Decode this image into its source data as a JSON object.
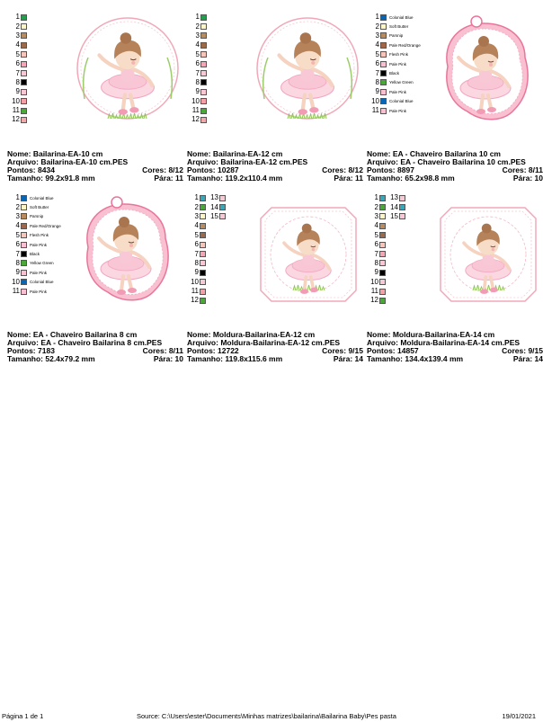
{
  "labels": {
    "name": "Nome:",
    "file": "Arquivo:",
    "stitches": "Pontos:",
    "size": "Tamanho:",
    "colors": "Cores:",
    "stops": "Pára:"
  },
  "footer": {
    "page": "Página 1 de 1",
    "source": "Source: C:\\Users\\ester\\Documents\\Minhas matrizes\\bailarina\\Bailarina Baby\\Pes pasta",
    "date": "19/01/2021"
  },
  "designs": [
    {
      "name": "Bailarina-EA-10 cm",
      "file": "Bailarina-EA-10 cm.PES",
      "stitches": "8434",
      "colors": "8/12",
      "size": "99.2x91.8 mm",
      "stops": "11",
      "shape": "circle",
      "swatches": [
        {
          "n": "1",
          "c": "#1fa04a"
        },
        {
          "n": "2",
          "c": "#fff6c8"
        },
        {
          "n": "3",
          "c": "#b88c5e"
        },
        {
          "n": "4",
          "c": "#9a6a4a"
        },
        {
          "n": "5",
          "c": "#f6c6bc"
        },
        {
          "n": "6",
          "c": "#f4a6b6"
        },
        {
          "n": "7",
          "c": "#f8c8d4"
        },
        {
          "n": "8",
          "c": "#000000"
        },
        {
          "n": "9",
          "c": "#f8c8d4"
        },
        {
          "n": "10",
          "c": "#f4a0a8"
        },
        {
          "n": "11",
          "c": "#4aa838"
        },
        {
          "n": "12",
          "c": "#f0a8a8"
        }
      ]
    },
    {
      "name": "Bailarina-EA-12 cm",
      "file": "Bailarina-EA-12 cm.PES",
      "stitches": "10287",
      "colors": "8/12",
      "size": "119.2x110.4 mm",
      "stops": "11",
      "shape": "circle",
      "swatches": [
        {
          "n": "1",
          "c": "#1fa04a"
        },
        {
          "n": "2",
          "c": "#fff6c8"
        },
        {
          "n": "3",
          "c": "#b88c5e"
        },
        {
          "n": "4",
          "c": "#9a6a4a"
        },
        {
          "n": "5",
          "c": "#f6c6bc"
        },
        {
          "n": "6",
          "c": "#f4a6b6"
        },
        {
          "n": "7",
          "c": "#f8c8d4"
        },
        {
          "n": "8",
          "c": "#000000"
        },
        {
          "n": "9",
          "c": "#f8c8d4"
        },
        {
          "n": "10",
          "c": "#f4a0a8"
        },
        {
          "n": "11",
          "c": "#4aa838"
        },
        {
          "n": "12",
          "c": "#f0a8a8"
        }
      ]
    },
    {
      "name": "EA - Chaveiro Bailarina 10 cm",
      "file": "EA - Chaveiro Bailarina 10 cm.PES",
      "stitches": "8897",
      "colors": "8/11",
      "size": "65.2x98.8 mm",
      "stops": "10",
      "shape": "keychain",
      "swatches": [
        {
          "n": "1",
          "c": "#0a66b2",
          "name": "Colonial Blue"
        },
        {
          "n": "2",
          "c": "#fff6c8",
          "name": "Soft Butter"
        },
        {
          "n": "3",
          "c": "#b88c5e",
          "name": "Parsnip"
        },
        {
          "n": "4",
          "c": "#a06848",
          "name": "Pale Red/Orange"
        },
        {
          "n": "5",
          "c": "#f6c6bc",
          "name": "Flesh Pink"
        },
        {
          "n": "6",
          "c": "#f8c0d0",
          "name": "Pale Pink"
        },
        {
          "n": "7",
          "c": "#000000",
          "name": "Black"
        },
        {
          "n": "8",
          "c": "#4aa838",
          "name": "Yellow Green"
        },
        {
          "n": "9",
          "c": "#f8c0d0",
          "name": "Pale Pink"
        },
        {
          "n": "10",
          "c": "#0a66b2",
          "name": "Colonial Blue"
        },
        {
          "n": "11",
          "c": "#f8c0d0",
          "name": "Pale Pink"
        }
      ]
    },
    {
      "name": "EA - Chaveiro Bailarina 8 cm",
      "file": "EA - Chaveiro Bailarina 8 cm.PES",
      "stitches": "7183",
      "colors": "8/11",
      "size": "52.4x79.2 mm",
      "stops": "10",
      "shape": "keychain",
      "swatches": [
        {
          "n": "1",
          "c": "#0a66b2",
          "name": "Colonial Blue"
        },
        {
          "n": "2",
          "c": "#fff6c8",
          "name": "Soft Butter"
        },
        {
          "n": "3",
          "c": "#b88c5e",
          "name": "Parsnip"
        },
        {
          "n": "4",
          "c": "#a06848",
          "name": "Pale Red/Orange"
        },
        {
          "n": "5",
          "c": "#f6c6bc",
          "name": "Flesh Pink"
        },
        {
          "n": "6",
          "c": "#f8c0d0",
          "name": "Pale Pink"
        },
        {
          "n": "7",
          "c": "#000000",
          "name": "Black"
        },
        {
          "n": "8",
          "c": "#4aa838",
          "name": "Yellow Green"
        },
        {
          "n": "9",
          "c": "#f8c0d0",
          "name": "Pale Pink"
        },
        {
          "n": "10",
          "c": "#0a66b2",
          "name": "Colonial Blue"
        },
        {
          "n": "11",
          "c": "#f8c0d0",
          "name": "Pale Pink"
        }
      ]
    },
    {
      "name": "Moldura-Bailarina-EA-12 cm",
      "file": "Moldura-Bailarina-EA-12 cm.PES",
      "stitches": "12722",
      "colors": "9/15",
      "size": "119.8x115.6 mm",
      "stops": "14",
      "shape": "frame",
      "swatches": [
        {
          "n": "1",
          "c": "#3aa6b8"
        },
        {
          "n": "2",
          "c": "#4aa838"
        },
        {
          "n": "3",
          "c": "#fff6c8"
        },
        {
          "n": "4",
          "c": "#b88c5e"
        },
        {
          "n": "5",
          "c": "#9a6a4a"
        },
        {
          "n": "6",
          "c": "#f6c6bc"
        },
        {
          "n": "7",
          "c": "#f4a6b6"
        },
        {
          "n": "8",
          "c": "#f8c8d4"
        },
        {
          "n": "9",
          "c": "#000000"
        },
        {
          "n": "10",
          "c": "#f8c8d4"
        },
        {
          "n": "11",
          "c": "#f4a0a8"
        },
        {
          "n": "12",
          "c": "#4aa838"
        },
        {
          "n": "13",
          "c": "#f8c8d4"
        },
        {
          "n": "14",
          "c": "#3aa6b8"
        },
        {
          "n": "15",
          "c": "#f8c8d4"
        }
      ]
    },
    {
      "name": "Moldura-Bailarina-EA-14 cm",
      "file": "Moldura-Bailarina-EA-14 cm.PES",
      "stitches": "14857",
      "colors": "9/15",
      "size": "134.4x139.4 mm",
      "stops": "14",
      "shape": "frame",
      "swatches": [
        {
          "n": "1",
          "c": "#3aa6b8"
        },
        {
          "n": "2",
          "c": "#4aa838"
        },
        {
          "n": "3",
          "c": "#fff6c8"
        },
        {
          "n": "4",
          "c": "#b88c5e"
        },
        {
          "n": "5",
          "c": "#9a6a4a"
        },
        {
          "n": "6",
          "c": "#f6c6bc"
        },
        {
          "n": "7",
          "c": "#f4a6b6"
        },
        {
          "n": "8",
          "c": "#f8c8d4"
        },
        {
          "n": "9",
          "c": "#000000"
        },
        {
          "n": "10",
          "c": "#f8c8d4"
        },
        {
          "n": "11",
          "c": "#f4a0a8"
        },
        {
          "n": "12",
          "c": "#4aa838"
        },
        {
          "n": "13",
          "c": "#f8c8d4"
        },
        {
          "n": "14",
          "c": "#3aa6b8"
        },
        {
          "n": "15",
          "c": "#f8c8d4"
        }
      ]
    }
  ]
}
